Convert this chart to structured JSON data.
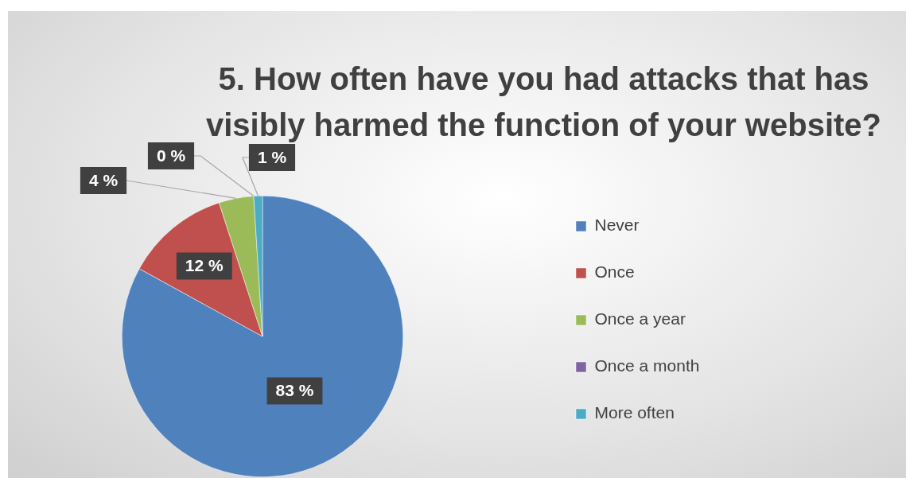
{
  "chart_data": {
    "type": "pie",
    "title": "5. How often have you had attacks that has visibly harmed the function of your website?",
    "categories": [
      "Never",
      "Once",
      "Once a year",
      "Once a month",
      "More often"
    ],
    "values": [
      83,
      12,
      4,
      0,
      1
    ],
    "value_labels": [
      "83 %",
      "12 %",
      "4 %",
      "0 %",
      "1 %"
    ],
    "colors": [
      "#4f81bd",
      "#c0504d",
      "#9bbb59",
      "#8064a2",
      "#4bacc6"
    ],
    "legend": "right"
  }
}
